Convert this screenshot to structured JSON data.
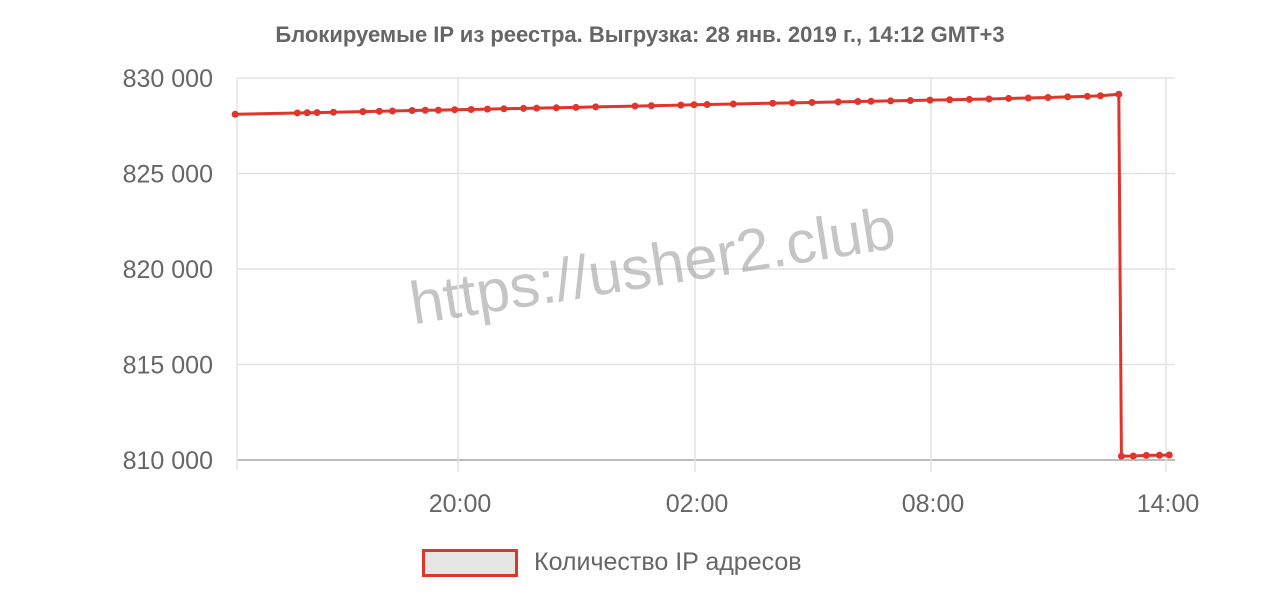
{
  "chart_data": {
    "type": "line",
    "title": "Блокируемые IP из реестра. Выгрузка: 28 янв. 2019 г., 14:12 GMT+3",
    "xlabel": "",
    "ylabel": "",
    "ylim": [
      810000,
      830000
    ],
    "y_ticks": [
      "830 000",
      "825 000",
      "820 000",
      "815 000",
      "810 000"
    ],
    "x_ticks": [
      "20:00",
      "02:00",
      "08:00",
      "14:00"
    ],
    "grid": true,
    "legend_placement": "bottom",
    "color": "#e0352b",
    "series": [
      {
        "name": "Количество IP адресов",
        "points": [
          [
            "2019-01-27 14:20",
            828100
          ],
          [
            "2019-01-27 15:55",
            828170
          ],
          [
            "2019-01-27 16:10",
            828180
          ],
          [
            "2019-01-27 16:25",
            828190
          ],
          [
            "2019-01-27 16:50",
            828210
          ],
          [
            "2019-01-27 17:35",
            828240
          ],
          [
            "2019-01-27 18:00",
            828260
          ],
          [
            "2019-01-27 18:20",
            828270
          ],
          [
            "2019-01-27 18:50",
            828300
          ],
          [
            "2019-01-27 19:10",
            828310
          ],
          [
            "2019-01-27 19:30",
            828320
          ],
          [
            "2019-01-27 19:55",
            828340
          ],
          [
            "2019-01-27 20:20",
            828350
          ],
          [
            "2019-01-27 20:45",
            828370
          ],
          [
            "2019-01-27 21:10",
            828390
          ],
          [
            "2019-01-27 21:40",
            828410
          ],
          [
            "2019-01-27 22:00",
            828420
          ],
          [
            "2019-01-27 22:30",
            828440
          ],
          [
            "2019-01-27 23:00",
            828460
          ],
          [
            "2019-01-27 23:30",
            828490
          ],
          [
            "2019-01-28 00:30",
            828530
          ],
          [
            "2019-01-28 00:55",
            828550
          ],
          [
            "2019-01-28 01:40",
            828580
          ],
          [
            "2019-01-28 02:00",
            828600
          ],
          [
            "2019-01-28 02:20",
            828610
          ],
          [
            "2019-01-28 03:00",
            828640
          ],
          [
            "2019-01-28 04:00",
            828680
          ],
          [
            "2019-01-28 04:30",
            828700
          ],
          [
            "2019-01-28 05:00",
            828720
          ],
          [
            "2019-01-28 05:40",
            828750
          ],
          [
            "2019-01-28 06:10",
            828770
          ],
          [
            "2019-01-28 06:30",
            828780
          ],
          [
            "2019-01-28 07:00",
            828800
          ],
          [
            "2019-01-28 07:30",
            828820
          ],
          [
            "2019-01-28 08:00",
            828840
          ],
          [
            "2019-01-28 08:30",
            828860
          ],
          [
            "2019-01-28 09:00",
            828880
          ],
          [
            "2019-01-28 09:30",
            828900
          ],
          [
            "2019-01-28 10:00",
            828930
          ],
          [
            "2019-01-28 10:30",
            828950
          ],
          [
            "2019-01-28 11:00",
            828980
          ],
          [
            "2019-01-28 11:30",
            829010
          ],
          [
            "2019-01-28 12:00",
            829040
          ],
          [
            "2019-01-28 12:20",
            829070
          ],
          [
            "2019-01-28 12:48",
            829150
          ],
          [
            "2019-01-28 12:52",
            810200
          ],
          [
            "2019-01-28 13:10",
            810210
          ],
          [
            "2019-01-28 13:30",
            810240
          ],
          [
            "2019-01-28 13:50",
            810250
          ],
          [
            "2019-01-28 14:05",
            810260
          ]
        ]
      }
    ]
  },
  "watermark": "https://usher2.club"
}
